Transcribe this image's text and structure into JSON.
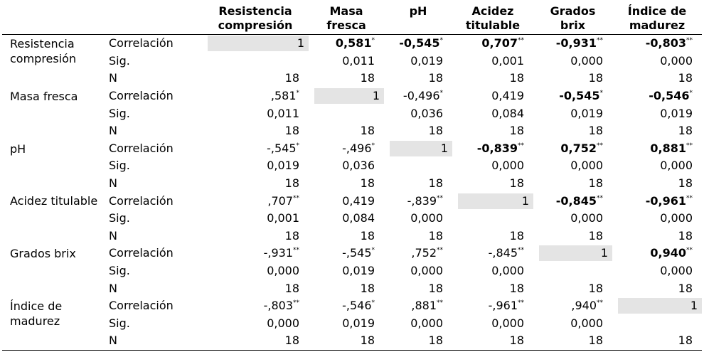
{
  "headers": [
    {
      "l1": "Resistencia",
      "l2": "compresión"
    },
    {
      "l1": "Masa",
      "l2": "fresca"
    },
    {
      "l1": "pH",
      "l2": ""
    },
    {
      "l1": "Acidez",
      "l2": "titulable"
    },
    {
      "l1": "Grados",
      "l2": "brix"
    },
    {
      "l1": "Índice de",
      "l2": "madurez"
    }
  ],
  "stat_labels": {
    "corr": "Correlación",
    "sig": "Sig.",
    "n": "N"
  },
  "variables": [
    {
      "name": "Resistencia compresión",
      "corr": [
        {
          "v": "1",
          "diag": true
        },
        {
          "v": "0,581",
          "s": "*",
          "b": true
        },
        {
          "v": "-0,545",
          "s": "*",
          "b": true
        },
        {
          "v": "0,707",
          "s": "**",
          "b": true
        },
        {
          "v": "-0,931",
          "s": "**",
          "b": true
        },
        {
          "v": "-0,803",
          "s": "**",
          "b": true
        }
      ],
      "sig": [
        "",
        "0,011",
        "0,019",
        "0,001",
        "0,000",
        "0,000"
      ],
      "n": [
        "18",
        "18",
        "18",
        "18",
        "18",
        "18"
      ]
    },
    {
      "name": "Masa fresca",
      "corr": [
        {
          "v": ",581",
          "s": "*"
        },
        {
          "v": "1",
          "diag": true
        },
        {
          "v": "-0,496",
          "s": "*"
        },
        {
          "v": "0,419"
        },
        {
          "v": "-0,545",
          "s": "*",
          "b": true
        },
        {
          "v": "-0,546",
          "s": "*",
          "b": true
        }
      ],
      "sig": [
        "0,011",
        "",
        "0,036",
        "0,084",
        "0,019",
        "0,019"
      ],
      "n": [
        "18",
        "18",
        "18",
        "18",
        "18",
        "18"
      ]
    },
    {
      "name": "pH",
      "corr": [
        {
          "v": "-,545",
          "s": "*"
        },
        {
          "v": "-,496",
          "s": "*"
        },
        {
          "v": "1",
          "diag": true
        },
        {
          "v": "-0,839",
          "s": "**",
          "b": true
        },
        {
          "v": "0,752",
          "s": "**",
          "b": true
        },
        {
          "v": "0,881",
          "s": "**",
          "b": true
        }
      ],
      "sig": [
        "0,019",
        "0,036",
        "",
        "0,000",
        "0,000",
        "0,000"
      ],
      "n": [
        "18",
        "18",
        "18",
        "18",
        "18",
        "18"
      ]
    },
    {
      "name": "Acidez titulable",
      "corr": [
        {
          "v": ",707",
          "s": "**"
        },
        {
          "v": "0,419"
        },
        {
          "v": "-,839",
          "s": "**"
        },
        {
          "v": "1",
          "diag": true
        },
        {
          "v": "-0,845",
          "s": "**",
          "b": true
        },
        {
          "v": "-0,961",
          "s": "**",
          "b": true
        }
      ],
      "sig": [
        "0,001",
        "0,084",
        "0,000",
        "",
        "0,000",
        "0,000"
      ],
      "n": [
        "18",
        "18",
        "18",
        "18",
        "18",
        "18"
      ]
    },
    {
      "name": "Grados brix",
      "corr": [
        {
          "v": "-,931",
          "s": "**"
        },
        {
          "v": "-,545",
          "s": "*"
        },
        {
          "v": ",752",
          "s": "**"
        },
        {
          "v": "-,845",
          "s": "**"
        },
        {
          "v": "1",
          "diag": true
        },
        {
          "v": "0,940",
          "s": "**",
          "b": true
        }
      ],
      "sig": [
        "0,000",
        "0,019",
        "0,000",
        "0,000",
        "",
        "0,000"
      ],
      "n": [
        "18",
        "18",
        "18",
        "18",
        "18",
        "18"
      ]
    },
    {
      "name": "Índice de madurez",
      "corr": [
        {
          "v": "-,803",
          "s": "**"
        },
        {
          "v": "-,546",
          "s": "*"
        },
        {
          "v": ",881",
          "s": "**"
        },
        {
          "v": "-,961",
          "s": "**"
        },
        {
          "v": ",940",
          "s": "**"
        },
        {
          "v": "1",
          "diag": true
        }
      ],
      "sig": [
        "0,000",
        "0,019",
        "0,000",
        "0,000",
        "0,000",
        ""
      ],
      "n": [
        "18",
        "18",
        "18",
        "18",
        "18",
        "18"
      ]
    }
  ]
}
